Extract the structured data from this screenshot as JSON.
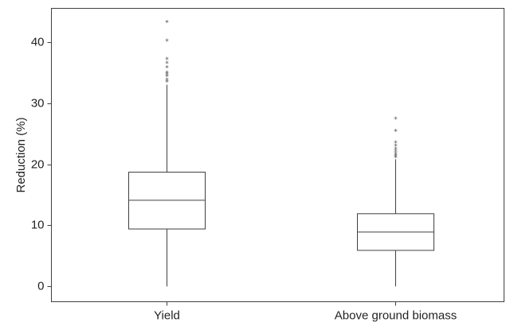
{
  "chart_data": {
    "type": "box",
    "ylabel": "Reduction (%)",
    "ylim": [
      -2.5,
      45.5
    ],
    "yticks": [
      0,
      10,
      20,
      30,
      40
    ],
    "categories": [
      "Yield",
      "Above ground biomass"
    ],
    "boxes": [
      {
        "category": "Yield",
        "whisker_low": 0,
        "q1": 9.4,
        "median": 14.1,
        "q3": 18.7,
        "whisker_high": 33.0,
        "outliers": [
          33.3,
          33.6,
          34.2,
          34.5,
          34.8,
          35.6,
          36.3,
          37.0,
          40.0,
          43.0
        ]
      },
      {
        "category": "Above ground biomass",
        "whisker_low": 0,
        "q1": 5.9,
        "median": 8.9,
        "q3": 11.9,
        "whisker_high": 20.8,
        "outliers": [
          20.9,
          21.2,
          21.5,
          21.9,
          22.3,
          22.8,
          23.3,
          25.2,
          27.2
        ]
      }
    ],
    "colors": {
      "stroke": "#404040",
      "background": "#ffffff"
    }
  }
}
